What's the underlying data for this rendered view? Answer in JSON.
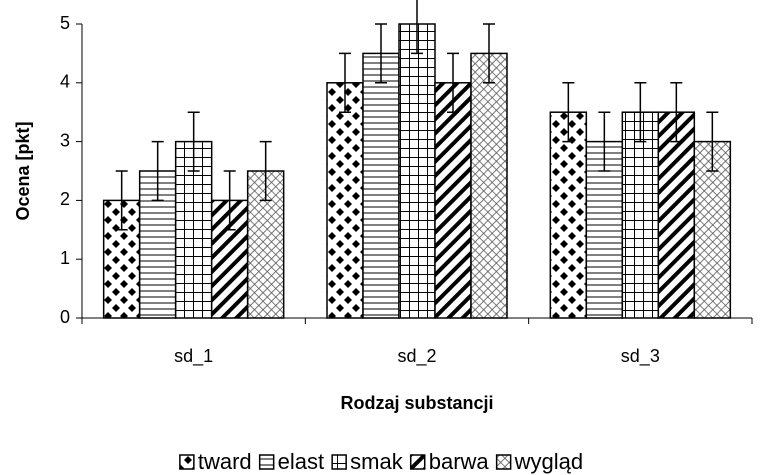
{
  "chart_data": {
    "type": "bar",
    "x_label": "Rodzaj substancji",
    "y_label": "Ocena [pkt]",
    "categories": [
      "sd_1",
      "sd_2",
      "sd_3"
    ],
    "series": [
      {
        "name": "tward",
        "pattern": "diamonds",
        "values": [
          2,
          4,
          3.5
        ],
        "errors": [
          0.5,
          0.5,
          0.5
        ]
      },
      {
        "name": "elast",
        "pattern": "horizontal",
        "values": [
          2.5,
          4.5,
          3
        ],
        "errors": [
          0.5,
          0.5,
          0.5
        ]
      },
      {
        "name": "smak",
        "pattern": "grid",
        "values": [
          3,
          5,
          3.5
        ],
        "errors": [
          0.5,
          0.5,
          0.5
        ]
      },
      {
        "name": "barwa",
        "pattern": "diagonal",
        "values": [
          2,
          4,
          3.5
        ],
        "errors": [
          0.5,
          0.5,
          0.5
        ]
      },
      {
        "name": "wygląd",
        "pattern": "crosshatch",
        "values": [
          2.5,
          4.5,
          3
        ],
        "errors": [
          0.5,
          0.5,
          0.5
        ]
      }
    ],
    "ylim": [
      0,
      5
    ],
    "yticks": [
      0,
      1,
      2,
      3,
      4,
      5
    ],
    "grid": false,
    "legend": "bottom"
  }
}
